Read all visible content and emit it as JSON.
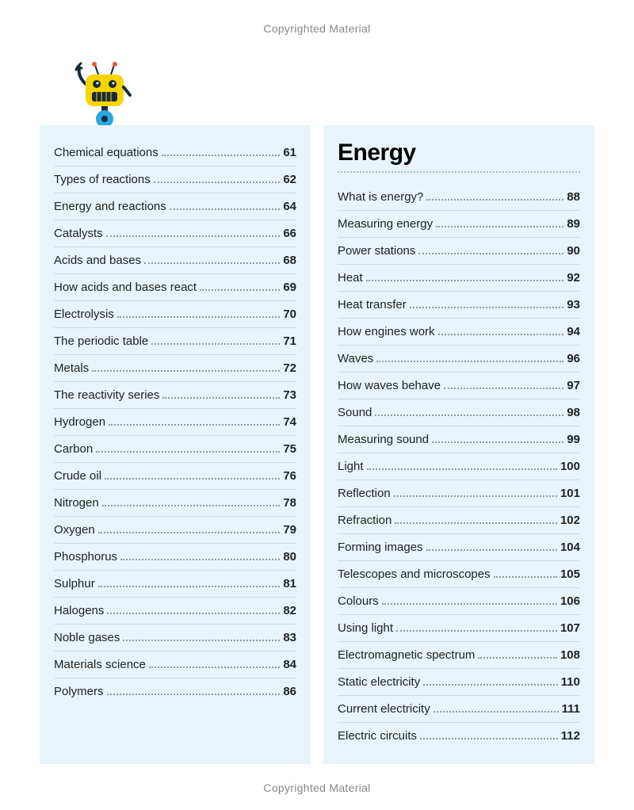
{
  "copyright_text": "Copyrighted Material",
  "colors": {
    "page_bg": "#ffffff",
    "panel_bg": "#e8f4f9",
    "divider": "#c8dde6",
    "dotted": "#9bbdc8",
    "copyright": "#888888",
    "text": "#222222",
    "robot_body": "#f5d400",
    "robot_dark": "#1a2a3a",
    "robot_blue": "#2aa8e0",
    "robot_orange": "#e85b2a"
  },
  "left_column": {
    "entries": [
      {
        "label": "Chemical equations",
        "page": "61"
      },
      {
        "label": "Types of reactions",
        "page": "62"
      },
      {
        "label": "Energy and reactions",
        "page": "64"
      },
      {
        "label": "Catalysts",
        "page": "66"
      },
      {
        "label": "Acids and bases",
        "page": "68"
      },
      {
        "label": "How acids and bases react",
        "page": "69"
      },
      {
        "label": "Electrolysis",
        "page": "70"
      },
      {
        "label": "The periodic table",
        "page": "71"
      },
      {
        "label": "Metals",
        "page": "72"
      },
      {
        "label": "The reactivity series",
        "page": "73"
      },
      {
        "label": "Hydrogen",
        "page": "74"
      },
      {
        "label": "Carbon",
        "page": "75"
      },
      {
        "label": "Crude oil",
        "page": "76"
      },
      {
        "label": "Nitrogen",
        "page": "78"
      },
      {
        "label": "Oxygen",
        "page": "79"
      },
      {
        "label": "Phosphorus",
        "page": "80"
      },
      {
        "label": "Sulphur",
        "page": "81"
      },
      {
        "label": "Halogens",
        "page": "82"
      },
      {
        "label": "Noble gases",
        "page": "83"
      },
      {
        "label": "Materials science",
        "page": "84"
      },
      {
        "label": "Polymers",
        "page": "86"
      }
    ]
  },
  "right_column": {
    "title": "Energy",
    "entries": [
      {
        "label": "What is energy?",
        "page": "88"
      },
      {
        "label": "Measuring energy",
        "page": "89"
      },
      {
        "label": "Power stations",
        "page": "90"
      },
      {
        "label": "Heat",
        "page": "92"
      },
      {
        "label": "Heat transfer",
        "page": "93"
      },
      {
        "label": "How engines work",
        "page": "94"
      },
      {
        "label": "Waves",
        "page": "96"
      },
      {
        "label": "How waves behave",
        "page": "97"
      },
      {
        "label": "Sound",
        "page": "98"
      },
      {
        "label": "Measuring sound",
        "page": "99"
      },
      {
        "label": "Light",
        "page": "100"
      },
      {
        "label": "Reflection",
        "page": "101"
      },
      {
        "label": "Refraction",
        "page": "102"
      },
      {
        "label": "Forming images",
        "page": "104"
      },
      {
        "label": "Telescopes and microscopes",
        "page": "105"
      },
      {
        "label": "Colours",
        "page": "106"
      },
      {
        "label": "Using light",
        "page": "107"
      },
      {
        "label": "Electromagnetic spectrum",
        "page": "108"
      },
      {
        "label": "Static electricity",
        "page": "110"
      },
      {
        "label": "Current electricity",
        "page": "111"
      },
      {
        "label": "Electric circuits",
        "page": "112"
      }
    ]
  }
}
